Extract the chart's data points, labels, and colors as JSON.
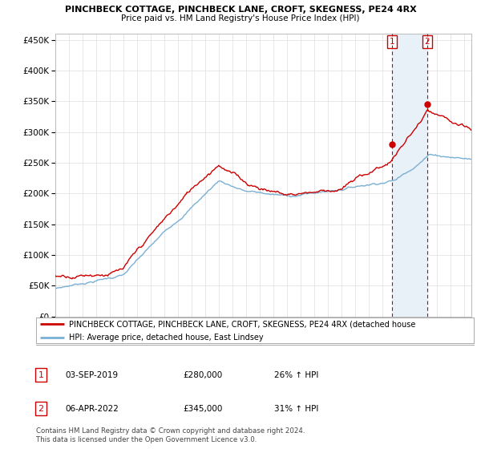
{
  "title": "PINCHBECK COTTAGE, PINCHBECK LANE, CROFT, SKEGNESS, PE24 4RX",
  "subtitle": "Price paid vs. HM Land Registry's House Price Index (HPI)",
  "ylabel_ticks": [
    "£0",
    "£50K",
    "£100K",
    "£150K",
    "£200K",
    "£250K",
    "£300K",
    "£350K",
    "£400K",
    "£450K"
  ],
  "ytick_values": [
    0,
    50000,
    100000,
    150000,
    200000,
    250000,
    300000,
    350000,
    400000,
    450000
  ],
  "xlim_start": 1995.0,
  "xlim_end": 2025.5,
  "ylim": [
    0,
    460000
  ],
  "sale1_x": 2019.67,
  "sale1_price": 280000,
  "sale2_x": 2022.27,
  "sale2_price": 345000,
  "legend_line1": "PINCHBECK COTTAGE, PINCHBECK LANE, CROFT, SKEGNESS, PE24 4RX (detached house",
  "legend_line2": "HPI: Average price, detached house, East Lindsey",
  "table_row1_date": "03-SEP-2019",
  "table_row1_price": "£280,000",
  "table_row1_hpi": "26% ↑ HPI",
  "table_row2_date": "06-APR-2022",
  "table_row2_price": "£345,000",
  "table_row2_hpi": "31% ↑ HPI",
  "footnote": "Contains HM Land Registry data © Crown copyright and database right 2024.\nThis data is licensed under the Open Government Licence v3.0.",
  "line_color_red": "#cc0000",
  "line_color_blue": "#7ab0d4",
  "bg_color": "#ffffff",
  "grid_color": "#dddddd",
  "shade_color": "#e8f0f8"
}
